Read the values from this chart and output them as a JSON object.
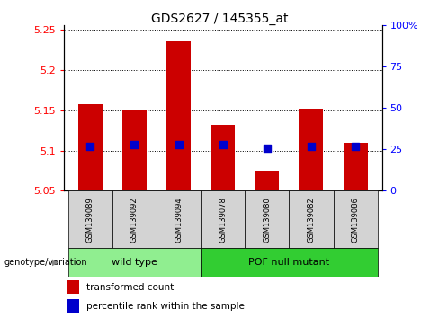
{
  "title": "GDS2627 / 145355_at",
  "samples": [
    "GSM139089",
    "GSM139092",
    "GSM139094",
    "GSM139078",
    "GSM139080",
    "GSM139082",
    "GSM139086"
  ],
  "red_values": [
    5.157,
    5.15,
    5.235,
    5.132,
    5.075,
    5.152,
    5.109
  ],
  "blue_percentiles": [
    27,
    28,
    28,
    28,
    26,
    27,
    27
  ],
  "ylim_left": [
    5.05,
    5.255
  ],
  "ylim_right": [
    0,
    100
  ],
  "yticks_left": [
    5.05,
    5.1,
    5.15,
    5.2,
    5.25
  ],
  "ytick_labels_left": [
    "5.05",
    "5.1",
    "5.15",
    "5.2",
    "5.25"
  ],
  "yticks_right": [
    0,
    25,
    50,
    75,
    100
  ],
  "ytick_labels_right": [
    "0",
    "25",
    "50",
    "75",
    "100%"
  ],
  "group1_indices": [
    0,
    1,
    2
  ],
  "group2_indices": [
    3,
    4,
    5,
    6
  ],
  "group1_label": "wild type",
  "group2_label": "POF null mutant",
  "group1_color": "#90EE90",
  "group2_color": "#32CD32",
  "bar_color": "#CC0000",
  "blue_color": "#0000CC",
  "baseline": 5.05,
  "legend_red_label": "transformed count",
  "legend_blue_label": "percentile rank within the sample",
  "genotype_label": "genotype/variation",
  "bar_width": 0.55,
  "blue_size": 30,
  "bg_gray": "#D3D3D3"
}
